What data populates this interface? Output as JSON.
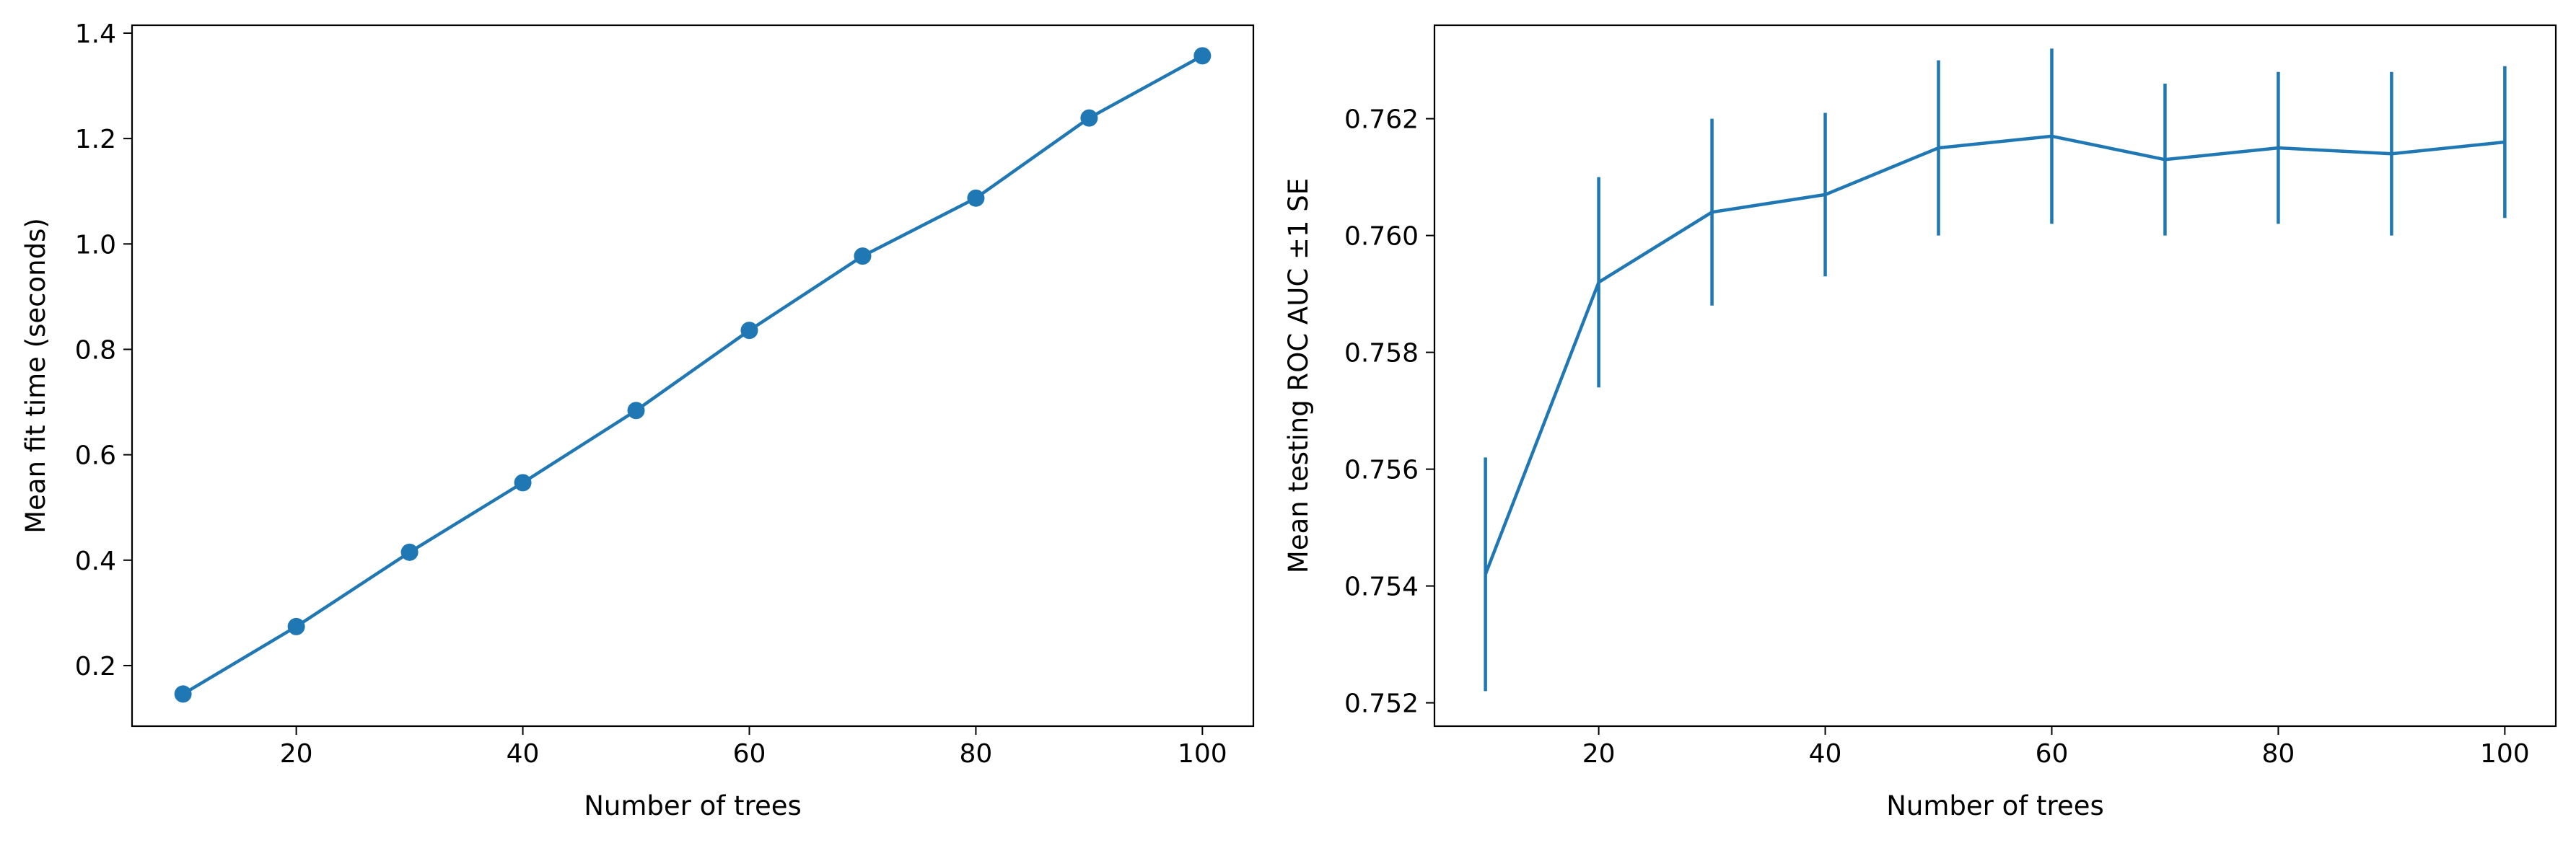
{
  "chart_data": [
    {
      "type": "line",
      "markers": true,
      "color": "#1f77b4",
      "xlabel": "Number of trees",
      "ylabel": "Mean fit time (seconds)",
      "xlim": [
        5.5,
        104.5
      ],
      "ylim": [
        0.085,
        1.415
      ],
      "xticks": [
        20,
        40,
        60,
        80,
        100
      ],
      "xtick_labels": [
        "20",
        "40",
        "60",
        "80",
        "100"
      ],
      "yticks": [
        0.2,
        0.4,
        0.6,
        0.8,
        1.0,
        1.2,
        1.4
      ],
      "ytick_labels": [
        "0.2",
        "0.4",
        "0.6",
        "0.8",
        "1.0",
        "1.2",
        "1.4"
      ],
      "grid": false,
      "x": [
        10,
        20,
        30,
        40,
        50,
        60,
        70,
        80,
        90,
        100
      ],
      "y": [
        0.146,
        0.274,
        0.415,
        0.547,
        0.684,
        0.836,
        0.977,
        1.087,
        1.239,
        1.357
      ]
    },
    {
      "type": "line",
      "error_bars": true,
      "color": "#1f77b4",
      "xlabel": "Number of trees",
      "ylabel": "Mean testing ROC AUC ±1 SE",
      "xlim": [
        5.5,
        104.5
      ],
      "ylim": [
        0.7516,
        0.7636
      ],
      "xticks": [
        20,
        40,
        60,
        80,
        100
      ],
      "xtick_labels": [
        "20",
        "40",
        "60",
        "80",
        "100"
      ],
      "yticks": [
        0.752,
        0.754,
        0.756,
        0.758,
        0.76,
        0.762
      ],
      "ytick_labels": [
        "0.752",
        "0.754",
        "0.756",
        "0.758",
        "0.760",
        "0.762"
      ],
      "grid": false,
      "x": [
        10,
        20,
        30,
        40,
        50,
        60,
        70,
        80,
        90,
        100
      ],
      "y": [
        0.7542,
        0.7592,
        0.7604,
        0.7607,
        0.7615,
        0.7617,
        0.7613,
        0.7615,
        0.7614,
        0.7616
      ],
      "se": [
        0.002,
        0.0018,
        0.0016,
        0.0014,
        0.0015,
        0.0015,
        0.0013,
        0.0013,
        0.0014,
        0.0013
      ]
    }
  ]
}
